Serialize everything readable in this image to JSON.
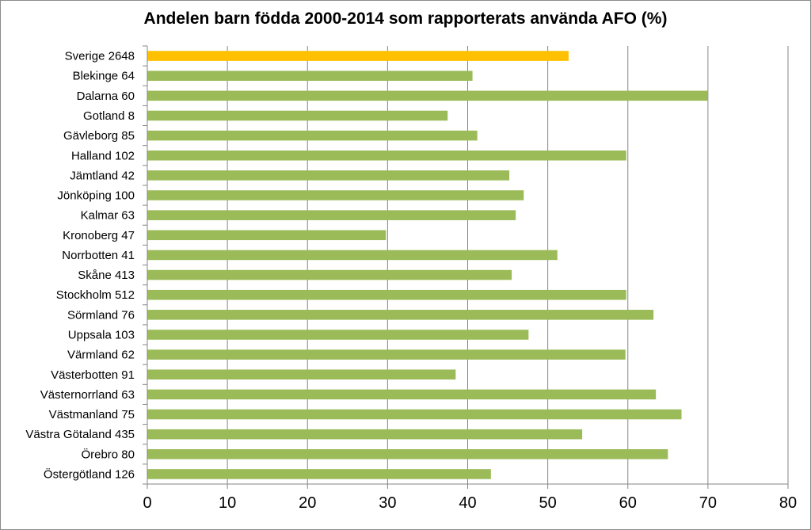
{
  "chart_data": {
    "type": "bar",
    "orientation": "horizontal",
    "title": "Andelen barn födda 2000-2014 som rapporterats använda AFO (%)",
    "xlabel": "",
    "ylabel": "",
    "xlim": [
      0,
      80
    ],
    "xticks": [
      0,
      10,
      20,
      30,
      40,
      50,
      60,
      70,
      80
    ],
    "grid": "vertical",
    "legend": "none",
    "categories": [
      "Sverige 2648",
      "Blekinge 64",
      "Dalarna 60",
      "Gotland 8",
      "Gävleborg 85",
      "Halland 102",
      "Jämtland 42",
      "Jönköping 100",
      "Kalmar 63",
      "Kronoberg 47",
      "Norrbotten 41",
      "Skåne 413",
      "Stockholm 512",
      "Sörmland 76",
      "Uppsala 103",
      "Värmland 62",
      "Västerbotten 91",
      "Västernorrland 63",
      "Västmanland 75",
      "Västra Götaland 435",
      "Örebro 80",
      "Östergötland 126"
    ],
    "values": [
      52.6,
      40.6,
      70.0,
      37.5,
      41.2,
      59.8,
      45.2,
      47.0,
      46.0,
      29.8,
      51.2,
      45.5,
      59.8,
      63.2,
      47.6,
      59.7,
      38.5,
      63.5,
      66.7,
      54.3,
      65.0,
      42.9
    ],
    "colors": {
      "highlight": "#FFC000",
      "default": "#9BBB59",
      "grid": "#868686",
      "axis": "#868686"
    },
    "highlight_index": 0
  }
}
